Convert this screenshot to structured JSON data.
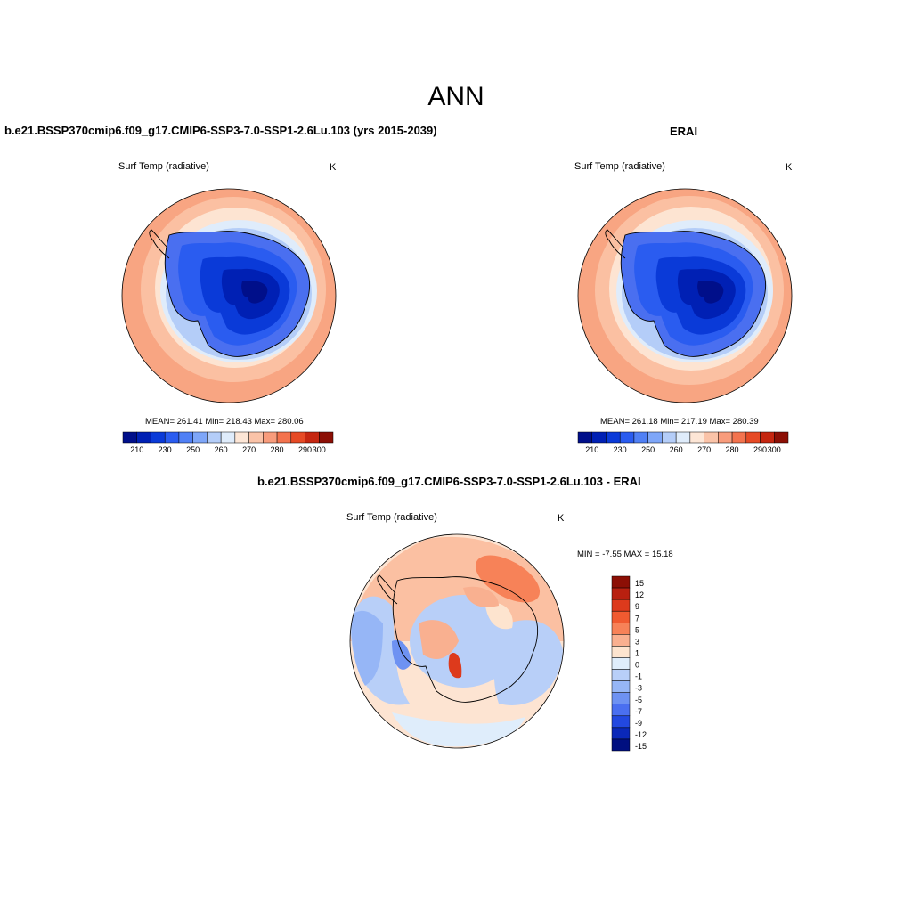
{
  "title": "ANN",
  "panels": [
    {
      "heading": "b.e21.BSSP370cmip6.f09_g17.CMIP6-SSP3-7.0-SSP1-2.6Lu.103 (yrs 2015-2039)",
      "variable": "Surf Temp (radiative)",
      "units": "K",
      "stats": "MEAN= 261.41  Min= 218.43  Max= 280.06"
    },
    {
      "heading": "ERAI",
      "variable": "Surf Temp (radiative)",
      "units": "K",
      "stats": "MEAN= 261.18  Min= 217.19  Max= 280.39"
    },
    {
      "heading": "b.e21.BSSP370cmip6.f09_g17.CMIP6-SSP3-7.0-SSP1-2.6Lu.103 - ERAI",
      "variable": "Surf Temp (radiative)",
      "units": "K",
      "stats": "MIN =  -7.55 MAX =  15.18"
    }
  ],
  "colorbar_abs": {
    "colors": [
      "#000f8a",
      "#0020b4",
      "#0a3ad8",
      "#2a5cf0",
      "#5080f5",
      "#7ea6f8",
      "#b4cdf8",
      "#dfecfb",
      "#fde6d6",
      "#fac3a8",
      "#f89c7c",
      "#f3734e",
      "#e64a25",
      "#c52610",
      "#8c0f05"
    ],
    "labels": [
      "210",
      "230",
      "250",
      "260",
      "270",
      "280",
      "290",
      "300"
    ]
  },
  "colorbar_diff": {
    "colors": [
      "#8c0f05",
      "#b82010",
      "#dd3a1c",
      "#f05a30",
      "#f78258",
      "#f9b090",
      "#fde4cf",
      "#dfedfb",
      "#b8cff8",
      "#96b6f6",
      "#6e92f2",
      "#4a6ff0",
      "#2248e0",
      "#0a28b8",
      "#000f80"
    ],
    "labels": [
      "15",
      "12",
      "9",
      "7",
      "5",
      "3",
      "1",
      "0",
      "-1",
      "-3",
      "-5",
      "-7",
      "-9",
      "-12",
      "-15"
    ]
  }
}
